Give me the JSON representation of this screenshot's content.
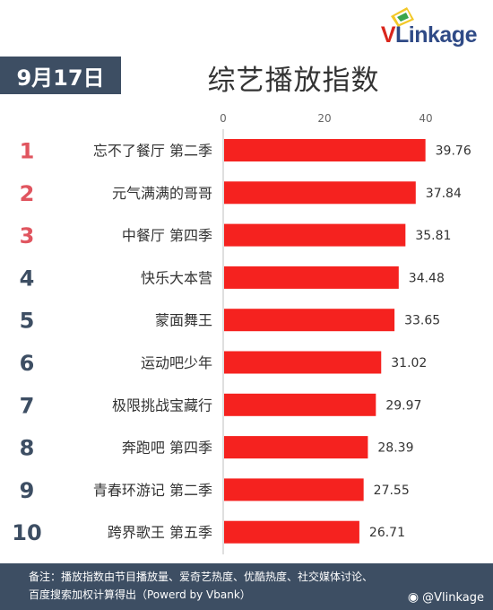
{
  "header": {
    "date": "9月17日",
    "title": "综艺播放指数"
  },
  "brand": {
    "logo_text_v": "V",
    "logo_text_rest": "Linkage",
    "accent": "#d9261c",
    "dark": "#3d4e63"
  },
  "chart_data": {
    "type": "bar",
    "orientation": "horizontal",
    "title": "综艺播放指数",
    "xlim": [
      0,
      45
    ],
    "ticks": [
      0,
      20,
      40
    ],
    "tick_labels": [
      "0",
      "20",
      "40"
    ],
    "ranks": [
      "1",
      "2",
      "3",
      "4",
      "5",
      "6",
      "7",
      "8",
      "9",
      "10"
    ],
    "categories": [
      "忘不了餐厅 第二季",
      "元气满满的哥哥",
      "中餐厅 第四季",
      "快乐大本营",
      "蒙面舞王",
      "运动吧少年",
      "极限挑战宝藏行",
      "奔跑吧 第四季",
      "青春环游记 第二季",
      "跨界歌王 第五季"
    ],
    "values": [
      39.76,
      37.84,
      35.81,
      34.48,
      33.65,
      31.02,
      29.97,
      28.39,
      27.55,
      26.71
    ],
    "value_labels": [
      "39.76",
      "37.84",
      "35.81",
      "34.48",
      "33.65",
      "31.02",
      "29.97",
      "28.39",
      "27.55",
      "26.71"
    ],
    "bar_color": "#f5221f",
    "rank_color_top": "#e0555f",
    "rank_color_rest": "#3d4e63",
    "grid": false,
    "legend": "none"
  },
  "footer": {
    "note_line1": "备注：播放指数由节目播放量、爱奇艺热度、优酷热度、社交媒体讨论、",
    "note_line2": "百度搜索加权计算得出（Powerd by Vbank）",
    "watermark": "@Vlinkage"
  }
}
